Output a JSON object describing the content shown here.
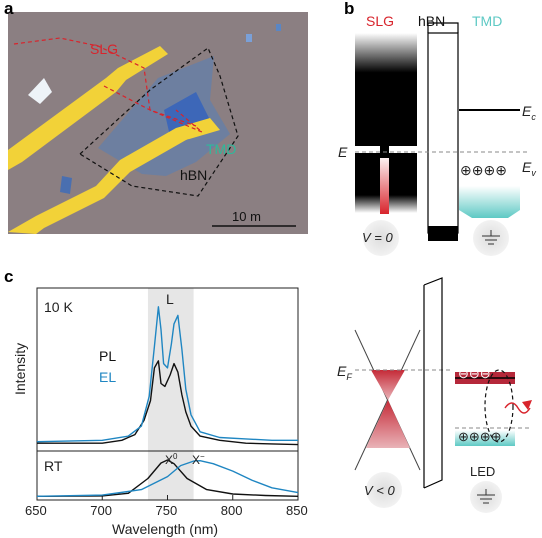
{
  "panels": {
    "a": {
      "letter": "a",
      "labels": {
        "slg": "SLG",
        "tmd": "TMD",
        "hbn": "hBN"
      },
      "scalebar": "10   m",
      "colors": {
        "slg_outline": "#d8242c",
        "tmd_label": "#2fb99b",
        "hbn_outline": "#111111",
        "gold": "#f2d238",
        "background": "#8a7f80",
        "flake": "#5f7ea0"
      }
    },
    "b": {
      "letter": "b",
      "columns": {
        "slg": "SLG",
        "hbn": "hBN",
        "tmd": "TMD"
      },
      "energy_labels": {
        "ec": "E",
        "ec_sub": "c",
        "ev": "E",
        "ev_sub": "v",
        "ef": "E",
        "ef_sub": "F"
      },
      "bias": "V = 0",
      "hole_symbols": "⊕⊕⊕⊕",
      "colors": {
        "slg": "#d8242c",
        "tmd": "#5ec9c4"
      }
    },
    "c": {
      "letter": "c",
      "top_label": "10 K",
      "bottom_label": "RT",
      "band_label": "L",
      "legend": {
        "pl": "PL",
        "el": "EL"
      },
      "exciton_labels": {
        "x0": "X",
        "x0_sup": "0",
        "xm": "X",
        "xm_sup": "−"
      },
      "colors": {
        "pl": "#111111",
        "el": "#1f86c2"
      }
    },
    "d": {
      "bias": "V < 0",
      "ef_label": "E",
      "ef_sub": "F",
      "electrons": "⊖⊖⊖",
      "holes": "⊕⊕⊕⊕",
      "device_label": "LED"
    }
  },
  "chart_data": {
    "type": "line",
    "xlabel": "Wavelength (nm)",
    "ylabel": "Intensity",
    "xlim": [
      650,
      850
    ],
    "x_ticks": [
      "650",
      "700",
      "750",
      "800",
      "850"
    ],
    "shaded_band_nm": [
      735,
      770
    ],
    "top_plot": {
      "label": "10 K",
      "series": [
        {
          "name": "PL",
          "x": [
            650,
            700,
            715,
            725,
            732,
            737,
            740,
            743,
            745,
            748,
            752,
            755,
            758,
            761,
            764,
            768,
            775,
            790,
            810,
            830,
            850
          ],
          "values": [
            0.02,
            0.02,
            0.04,
            0.08,
            0.18,
            0.32,
            0.55,
            0.6,
            0.44,
            0.42,
            0.5,
            0.58,
            0.52,
            0.36,
            0.24,
            0.14,
            0.07,
            0.04,
            0.02,
            0.015,
            0.01
          ]
        },
        {
          "name": "EL",
          "x": [
            650,
            700,
            720,
            730,
            736,
            740,
            743,
            745,
            747,
            750,
            753,
            755,
            758,
            761,
            764,
            768,
            775,
            790,
            810,
            830,
            850
          ],
          "values": [
            0.03,
            0.04,
            0.07,
            0.14,
            0.35,
            0.7,
            0.98,
            0.82,
            0.58,
            0.55,
            0.72,
            0.86,
            0.92,
            0.68,
            0.4,
            0.22,
            0.1,
            0.06,
            0.05,
            0.04,
            0.04
          ]
        }
      ]
    },
    "bottom_plot": {
      "label": "RT",
      "series": [
        {
          "name": "PL",
          "x": [
            650,
            700,
            720,
            735,
            745,
            750,
            755,
            765,
            780,
            800,
            825,
            850
          ],
          "values": [
            0.02,
            0.03,
            0.1,
            0.5,
            0.92,
            1.0,
            0.9,
            0.5,
            0.2,
            0.08,
            0.04,
            0.02
          ]
        },
        {
          "name": "EL",
          "x": [
            650,
            700,
            730,
            750,
            760,
            770,
            775,
            785,
            800,
            815,
            830,
            850
          ],
          "values": [
            0.02,
            0.05,
            0.2,
            0.55,
            0.85,
            0.97,
            0.98,
            0.9,
            0.7,
            0.45,
            0.25,
            0.12
          ]
        }
      ]
    }
  }
}
